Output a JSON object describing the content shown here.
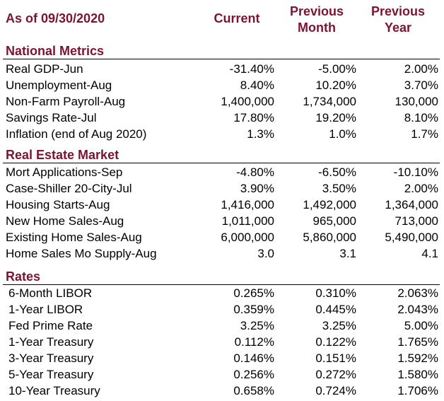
{
  "header": {
    "as_of": "As of 09/30/2020",
    "current": "Current",
    "previous_month_line1": "Previous",
    "previous_month_line2": "Month",
    "previous_year_line1": "Previous",
    "previous_year_line2": "Year"
  },
  "sections": [
    {
      "title": "National Metrics",
      "rows": [
        {
          "label": "Real GDP-Jun",
          "current": "-31.40%",
          "previous_month": "-5.00%",
          "previous_year": "2.00%"
        },
        {
          "label": "Unemployment-Aug",
          "current": "8.40%",
          "previous_month": "10.20%",
          "previous_year": "3.70%"
        },
        {
          "label": "Non-Farm Payroll-Aug",
          "current": "1,400,000",
          "previous_month": "1,734,000",
          "previous_year": "130,000"
        },
        {
          "label": "Savings Rate-Jul",
          "current": "17.80%",
          "previous_month": "19.20%",
          "previous_year": "8.10%"
        },
        {
          "label": "Inflation (end of Aug 2020)",
          "current": "1.3%",
          "previous_month": "1.0%",
          "previous_year": "1.7%"
        }
      ]
    },
    {
      "title": "Real Estate Market",
      "rows": [
        {
          "label": "Mort Applications-Sep",
          "current": "-4.80%",
          "previous_month": "-6.50%",
          "previous_year": "-10.10%"
        },
        {
          "label": "Case-Shiller 20-City-Jul",
          "current": "3.90%",
          "previous_month": "3.50%",
          "previous_year": "2.00%"
        },
        {
          "label": "Housing Starts-Aug",
          "current": "1,416,000",
          "previous_month": "1,492,000",
          "previous_year": "1,364,000"
        },
        {
          "label": "New Home Sales-Aug",
          "current": "1,011,000",
          "previous_month": "965,000",
          "previous_year": "713,000"
        },
        {
          "label": "Existing Home Sales-Aug",
          "current": "6,000,000",
          "previous_month": "5,860,000",
          "previous_year": "5,490,000"
        },
        {
          "label": "Home Sales Mo Supply-Aug",
          "current": "3.0",
          "previous_month": "3.1",
          "previous_year": "4.1"
        }
      ]
    },
    {
      "title": "Rates",
      "rows": [
        {
          "label": "6-Month LIBOR",
          "current": "0.265%",
          "previous_month": "0.310%",
          "previous_year": "2.063%"
        },
        {
          "label": "1-Year LIBOR",
          "current": "0.359%",
          "previous_month": "0.445%",
          "previous_year": "2.043%"
        },
        {
          "label": "Fed Prime Rate",
          "current": "3.25%",
          "previous_month": "3.25%",
          "previous_year": "5.00%"
        },
        {
          "label": "1-Year Treasury",
          "current": "0.112%",
          "previous_month": "0.122%",
          "previous_year": "1.765%"
        },
        {
          "label": "3-Year Treasury",
          "current": "0.146%",
          "previous_month": "0.151%",
          "previous_year": "1.592%"
        },
        {
          "label": "5-Year Treasury",
          "current": "0.256%",
          "previous_month": "0.272%",
          "previous_year": "1.580%"
        },
        {
          "label": "10-Year Treasury",
          "current": "0.658%",
          "previous_month": "0.724%",
          "previous_year": "1.706%"
        }
      ]
    }
  ],
  "colors": {
    "heading": "#7b1430",
    "text": "#000000",
    "background": "#ffffff"
  }
}
